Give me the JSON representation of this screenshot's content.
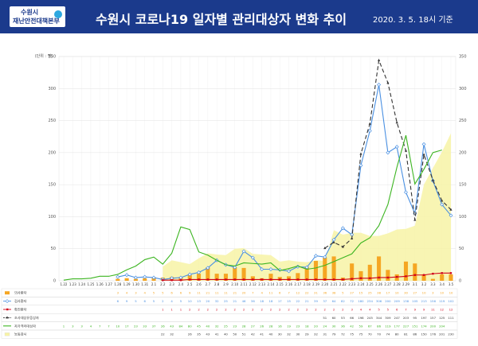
{
  "header": {
    "logo_line1": "수원시",
    "logo_line2": "재난안전대책본부",
    "title": "수원시 코로나19  일자별 관리대상자 변화 추이",
    "as_of": "2020. 3. 5.  18시 기준"
  },
  "chart_data": {
    "type": "bar+line",
    "unit_label": "(단위 : 명)",
    "ylim": [
      0,
      350
    ],
    "yticks": [
      0,
      50,
      100,
      150,
      200,
      250,
      300,
      350
    ],
    "dates": [
      "1.22",
      "1.23",
      "1.24",
      "1.25",
      "1.26",
      "1.27",
      "1.28",
      "1.29",
      "1.30",
      "1.31",
      "2.1",
      "2.2",
      "2.3",
      "2.4",
      "2.5",
      "2.6",
      "2.7",
      "2.8",
      "2.9",
      "2.10",
      "2.11",
      "2.12",
      "2.13",
      "2.14",
      "2.15",
      "2.16",
      "2.17",
      "2.18",
      "2.19",
      "2.20",
      "2.21",
      "2.22",
      "2.23",
      "2.24",
      "2.25",
      "2.26",
      "2.27",
      "2.28",
      "2.29",
      "3.1",
      "3.2",
      "3.3",
      "3.4",
      "3.5"
    ],
    "series": [
      {
        "name": "의사환자",
        "kind": "bar",
        "color": "#f5a623",
        "values": [
          null,
          null,
          null,
          null,
          null,
          null,
          3,
          4,
          3,
          4,
          5,
          5,
          6,
          6,
          9,
          11,
          21,
          11,
          11,
          21,
          20,
          7,
          4,
          11,
          6,
          7,
          12,
          22,
          31,
          36,
          38,
          5,
          27,
          15,
          25,
          38,
          17,
          10,
          30,
          27,
          10,
          3,
          10,
          10
        ]
      },
      {
        "name": "검사환자",
        "kind": "line",
        "color": "#4a90e2",
        "marker": "diamond",
        "values": [
          null,
          null,
          null,
          null,
          null,
          null,
          6,
          9,
          5,
          6,
          5,
          2,
          4,
          5,
          10,
          13,
          20,
          32,
          25,
          21,
          46,
          36,
          18,
          18,
          17,
          15,
          22,
          21,
          39,
          37,
          64,
          82,
          72,
          180,
          234,
          306,
          200,
          209,
          138,
          105,
          213,
          156,
          119,
          102
        ]
      },
      {
        "name": "확진환자",
        "kind": "line",
        "color": "#d0021b",
        "marker": "square",
        "values": [
          null,
          null,
          null,
          null,
          null,
          null,
          null,
          null,
          null,
          null,
          null,
          1,
          1,
          1,
          2,
          2,
          2,
          2,
          2,
          2,
          2,
          2,
          2,
          2,
          2,
          2,
          2,
          2,
          2,
          2,
          2,
          2,
          3,
          4,
          4,
          5,
          5,
          6,
          7,
          9,
          9,
          11,
          12,
          12
        ]
      },
      {
        "name": "조사대상유증상자",
        "kind": "line",
        "color": "#333333",
        "marker": "triangle",
        "dash": "5,3",
        "values": [
          null,
          null,
          null,
          null,
          null,
          null,
          null,
          null,
          null,
          null,
          null,
          null,
          null,
          null,
          null,
          null,
          null,
          null,
          null,
          null,
          null,
          null,
          null,
          null,
          null,
          null,
          null,
          null,
          null,
          51,
          60,
          53,
          66,
          198,
          245,
          344,
          309,
          247,
          203,
          95,
          197,
          157,
          125,
          111
        ]
      },
      {
        "name": "자가격리대상자",
        "kind": "line",
        "color": "#3cb521",
        "values": [
          1,
          3,
          3,
          4,
          7,
          7,
          10,
          17,
          23,
          33,
          37,
          26,
          43,
          84,
          80,
          45,
          40,
          32,
          25,
          23,
          28,
          27,
          26,
          28,
          16,
          19,
          23,
          18,
          20,
          24,
          30,
          36,
          42,
          59,
          67,
          86,
          119,
          177,
          227,
          151,
          174,
          200,
          204,
          null
        ]
      },
      {
        "name": "능동감시",
        "kind": "area",
        "color": "#f7f3a6",
        "values": [
          null,
          null,
          null,
          null,
          null,
          null,
          null,
          null,
          null,
          null,
          null,
          22,
          32,
          null,
          26,
          35,
          43,
          41,
          40,
          50,
          51,
          42,
          41,
          40,
          30,
          32,
          30,
          29,
          32,
          31,
          79,
          72,
          75,
          75,
          70,
          70,
          74,
          80,
          81,
          86,
          150,
          176,
          201,
          230
        ]
      }
    ],
    "table_rows": [
      {
        "label": "의사환자",
        "values": [
          "",
          "",
          "",
          "",
          "",
          "",
          "3",
          "4",
          "3",
          "4",
          "5",
          "5",
          "6",
          "6",
          "9",
          "11",
          "21",
          "11",
          "11",
          "21",
          "20",
          "7",
          "4",
          "11",
          "6",
          "7",
          "12",
          "22",
          "31",
          "36",
          "38",
          "5",
          "27",
          "15",
          "25",
          "38",
          "17",
          "10",
          "30",
          "27",
          "10",
          "3",
          "10",
          "10"
        ]
      },
      {
        "label": "검사환자",
        "values": [
          "",
          "",
          "",
          "",
          "",
          "",
          "6",
          "9",
          "5",
          "6",
          "5",
          "2",
          "4",
          "5",
          "10",
          "13",
          "20",
          "32",
          "25",
          "21",
          "46",
          "36",
          "18",
          "18",
          "17",
          "15",
          "22",
          "21",
          "39",
          "37",
          "64",
          "82",
          "72",
          "180",
          "234",
          "306",
          "200",
          "209",
          "138",
          "105",
          "213",
          "156",
          "119",
          "102"
        ]
      },
      {
        "label": "확진환자",
        "values": [
          "",
          "",
          "",
          "",
          "",
          "",
          "",
          "",
          "",
          "",
          "",
          "1",
          "1",
          "1",
          "2",
          "2",
          "2",
          "2",
          "2",
          "2",
          "2",
          "2",
          "2",
          "2",
          "2",
          "2",
          "2",
          "2",
          "2",
          "2",
          "2",
          "2",
          "3",
          "4",
          "4",
          "5",
          "5",
          "6",
          "7",
          "9",
          "9",
          "11",
          "12",
          "12"
        ]
      },
      {
        "label": "조사대상유증상자",
        "values": [
          "",
          "",
          "",
          "",
          "",
          "",
          "",
          "",
          "",
          "",
          "",
          "",
          "",
          "",
          "",
          "",
          "",
          "",
          "",
          "",
          "",
          "",
          "",
          "",
          "",
          "",
          "",
          "",
          "",
          "51",
          "60",
          "53",
          "66",
          "198",
          "245",
          "344",
          "309",
          "247",
          "203",
          "95",
          "197",
          "157",
          "125",
          "111"
        ]
      },
      {
        "label": "자가격리대상자",
        "values": [
          "1",
          "3",
          "3",
          "4",
          "7",
          "7",
          "10",
          "17",
          "23",
          "33",
          "37",
          "26",
          "43",
          "84",
          "80",
          "45",
          "40",
          "32",
          "25",
          "23",
          "28",
          "27",
          "26",
          "28",
          "16",
          "19",
          "23",
          "18",
          "20",
          "24",
          "30",
          "36",
          "42",
          "59",
          "67",
          "86",
          "119",
          "177",
          "227",
          "151",
          "174",
          "200",
          "204",
          ""
        ]
      },
      {
        "label": "능동감시",
        "values": [
          "",
          "",
          "",
          "",
          "",
          "",
          "",
          "",
          "",
          "",
          "",
          "22",
          "32",
          "",
          "26",
          "35",
          "43",
          "41",
          "40",
          "50",
          "51",
          "42",
          "41",
          "40",
          "30",
          "32",
          "30",
          "29",
          "32",
          "31",
          "79",
          "72",
          "75",
          "75",
          "70",
          "70",
          "74",
          "80",
          "81",
          "86",
          "150",
          "176",
          "201",
          "230"
        ]
      }
    ]
  }
}
